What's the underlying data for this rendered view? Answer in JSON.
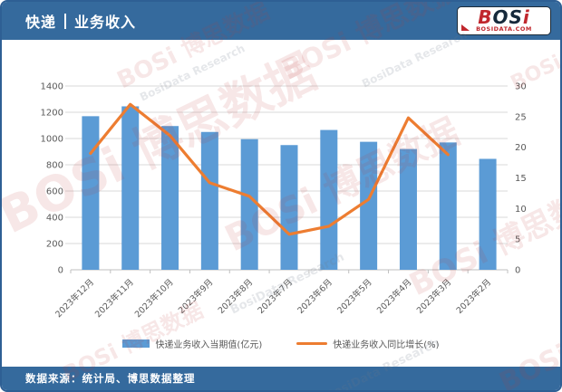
{
  "header": {
    "title_prefix": "快递",
    "title_main": "业务收入"
  },
  "logo": {
    "main_b": "B",
    "main_rest": "OS",
    "main_i": "i",
    "sub": "BOSIDATA.COM"
  },
  "footer": {
    "source": "数据来源：统计局、博思数据整理"
  },
  "watermarks": [
    "BOSi 博思数据",
    "BosiData Research"
  ],
  "colors": {
    "bar": "#5B9BD5",
    "line": "#ED7D31",
    "header_blue": "#356A9D",
    "grid": "#D9D9D9",
    "axis": "#BFBFBF",
    "label": "#595959"
  },
  "chart_data": {
    "type": "bar",
    "title": "快递 | 业务收入",
    "categories": [
      "2023年12月",
      "2023年11月",
      "2023年10月",
      "2023年9月",
      "2023年8月",
      "2023年7月",
      "2023年6月",
      "2023年5月",
      "2023年4月",
      "2023年3月",
      "2023年2月"
    ],
    "series": [
      {
        "name": "快递业务收入当期值(亿元)",
        "type": "bar",
        "axis": "left",
        "color": "#5B9BD5",
        "values": [
          1170,
          1245,
          1095,
          1050,
          995,
          950,
          1065,
          975,
          920,
          970,
          845
        ]
      },
      {
        "name": "快递业务收入同比增长(%)",
        "type": "line",
        "axis": "right",
        "color": "#ED7D31",
        "values": [
          19.0,
          27.0,
          21.9,
          14.2,
          12.0,
          5.8,
          7.1,
          11.5,
          24.8,
          18.8,
          null
        ]
      }
    ],
    "left_axis": {
      "min": 0,
      "max": 1400,
      "step": 200
    },
    "right_axis": {
      "min": 0,
      "max": 30,
      "step": 5
    },
    "grid": "horizontal",
    "legend_position": "bottom"
  }
}
